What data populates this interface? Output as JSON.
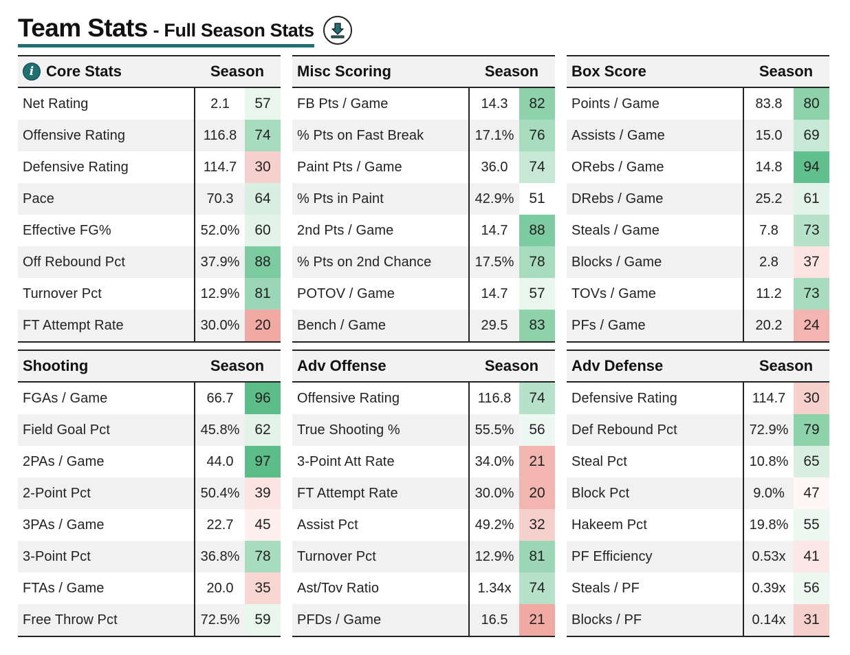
{
  "header": {
    "title": "Team Stats",
    "subtitle": "- Full Season Stats",
    "download_icon": "download-icon"
  },
  "panels": [
    {
      "id": "core-stats",
      "title": "Core Stats",
      "has_info_icon": true,
      "season_label": "Season",
      "rows": [
        {
          "label": "Net Rating",
          "value": "2.1",
          "pct": "57",
          "color": "#e9f6ee"
        },
        {
          "label": "Offensive Rating",
          "value": "116.8",
          "pct": "74",
          "color": "#a8dcbf"
        },
        {
          "label": "Defensive Rating",
          "value": "114.7",
          "pct": "30",
          "color": "#f6d0cc"
        },
        {
          "label": "Pace",
          "value": "70.3",
          "pct": "64",
          "color": "#d8efe2"
        },
        {
          "label": "Effective FG%",
          "value": "52.0%",
          "pct": "60",
          "color": "#e3f3ea"
        },
        {
          "label": "Off Rebound Pct",
          "value": "37.9%",
          "pct": "88",
          "color": "#7dcba1"
        },
        {
          "label": "Turnover Pct",
          "value": "12.9%",
          "pct": "81",
          "color": "#9bd7b6"
        },
        {
          "label": "FT Attempt Rate",
          "value": "30.0%",
          "pct": "20",
          "color": "#f0aaa3"
        }
      ]
    },
    {
      "id": "misc-scoring",
      "title": "Misc Scoring",
      "has_info_icon": false,
      "season_label": "Season",
      "rows": [
        {
          "label": "FB Pts / Game",
          "value": "14.3",
          "pct": "82",
          "color": "#8ed2ac"
        },
        {
          "label": "% Pts on Fast Break",
          "value": "17.1%",
          "pct": "76",
          "color": "#a8dcbf"
        },
        {
          "label": "Paint Pts / Game",
          "value": "36.0",
          "pct": "74",
          "color": "#c6e8d5"
        },
        {
          "label": "% Pts in Paint",
          "value": "42.9%",
          "pct": "51",
          "color": "#ffffff"
        },
        {
          "label": "2nd Pts / Game",
          "value": "14.7",
          "pct": "88",
          "color": "#7dcba1"
        },
        {
          "label": "% Pts on 2nd Chance",
          "value": "17.5%",
          "pct": "78",
          "color": "#a8dcbf"
        },
        {
          "label": "POTOV / Game",
          "value": "14.7",
          "pct": "57",
          "color": "#e9f6ee"
        },
        {
          "label": "Bench / Game",
          "value": "29.5",
          "pct": "83",
          "color": "#8ed2ac"
        }
      ]
    },
    {
      "id": "box-score",
      "title": "Box Score",
      "has_info_icon": false,
      "season_label": "Season",
      "rows": [
        {
          "label": "Points / Game",
          "value": "83.8",
          "pct": "80",
          "color": "#8ed2ac"
        },
        {
          "label": "Assists / Game",
          "value": "15.0",
          "pct": "69",
          "color": "#c6e8d5"
        },
        {
          "label": "ORebs / Game",
          "value": "14.8",
          "pct": "94",
          "color": "#62c08e"
        },
        {
          "label": "DRebs / Game",
          "value": "25.2",
          "pct": "61",
          "color": "#e3f3ea"
        },
        {
          "label": "Steals / Game",
          "value": "7.8",
          "pct": "73",
          "color": "#b6e2ca"
        },
        {
          "label": "Blocks / Game",
          "value": "2.8",
          "pct": "37",
          "color": "#fbe4e1"
        },
        {
          "label": "TOVs / Game",
          "value": "11.2",
          "pct": "73",
          "color": "#a8dcbf"
        },
        {
          "label": "PFs / Game",
          "value": "20.2",
          "pct": "24",
          "color": "#f2b5af"
        }
      ]
    },
    {
      "id": "shooting",
      "title": "Shooting",
      "has_info_icon": false,
      "season_label": "Season",
      "rows": [
        {
          "label": "FGAs / Game",
          "value": "66.7",
          "pct": "96",
          "color": "#5dbd89"
        },
        {
          "label": "Field Goal Pct",
          "value": "45.8%",
          "pct": "62",
          "color": "#e3f3ea"
        },
        {
          "label": "2PAs / Game",
          "value": "44.0",
          "pct": "97",
          "color": "#5dbd89"
        },
        {
          "label": "2-Point Pct",
          "value": "50.4%",
          "pct": "39",
          "color": "#fbe4e1"
        },
        {
          "label": "3PAs / Game",
          "value": "22.7",
          "pct": "45",
          "color": "#fdf0ee"
        },
        {
          "label": "3-Point Pct",
          "value": "36.8%",
          "pct": "78",
          "color": "#a8dcbf"
        },
        {
          "label": "FTAs / Game",
          "value": "20.0",
          "pct": "35",
          "color": "#f8d6d2"
        },
        {
          "label": "Free Throw Pct",
          "value": "72.5%",
          "pct": "59",
          "color": "#e9f6ee"
        }
      ]
    },
    {
      "id": "adv-offense",
      "title": "Adv Offense",
      "has_info_icon": false,
      "season_label": "Season",
      "rows": [
        {
          "label": "Offensive Rating",
          "value": "116.8",
          "pct": "74",
          "color": "#b6e2ca"
        },
        {
          "label": "True Shooting %",
          "value": "55.5%",
          "pct": "56",
          "color": "#eef8f2"
        },
        {
          "label": "3-Point Att Rate",
          "value": "34.0%",
          "pct": "21",
          "color": "#f2b5af"
        },
        {
          "label": "FT Attempt Rate",
          "value": "30.0%",
          "pct": "20",
          "color": "#f2b5af"
        },
        {
          "label": "Assist Pct",
          "value": "49.2%",
          "pct": "32",
          "color": "#f6d0cc"
        },
        {
          "label": "Turnover Pct",
          "value": "12.9%",
          "pct": "81",
          "color": "#9bd7b6"
        },
        {
          "label": "Ast/Tov Ratio",
          "value": "1.34x",
          "pct": "74",
          "color": "#b6e2ca"
        },
        {
          "label": "PFDs / Game",
          "value": "16.5",
          "pct": "21",
          "color": "#f0aaa3"
        }
      ]
    },
    {
      "id": "adv-defense",
      "title": "Adv Defense",
      "has_info_icon": false,
      "season_label": "Season",
      "rows": [
        {
          "label": "Defensive Rating",
          "value": "114.7",
          "pct": "30",
          "color": "#f6d0cc"
        },
        {
          "label": "Def Rebound Pct",
          "value": "72.9%",
          "pct": "79",
          "color": "#8ed2ac"
        },
        {
          "label": "Steal Pct",
          "value": "10.8%",
          "pct": "65",
          "color": "#d8efe2"
        },
        {
          "label": "Block Pct",
          "value": "9.0%",
          "pct": "47",
          "color": "#fef7f6"
        },
        {
          "label": "Hakeem Pct",
          "value": "19.8%",
          "pct": "55",
          "color": "#eef8f2"
        },
        {
          "label": "PF Efficiency",
          "value": "0.53x",
          "pct": "41",
          "color": "#fbe8e6"
        },
        {
          "label": "Steals / PF",
          "value": "0.39x",
          "pct": "56",
          "color": "#eef8f2"
        },
        {
          "label": "Blocks / PF",
          "value": "0.14x",
          "pct": "31",
          "color": "#f6d0cc"
        }
      ]
    }
  ]
}
